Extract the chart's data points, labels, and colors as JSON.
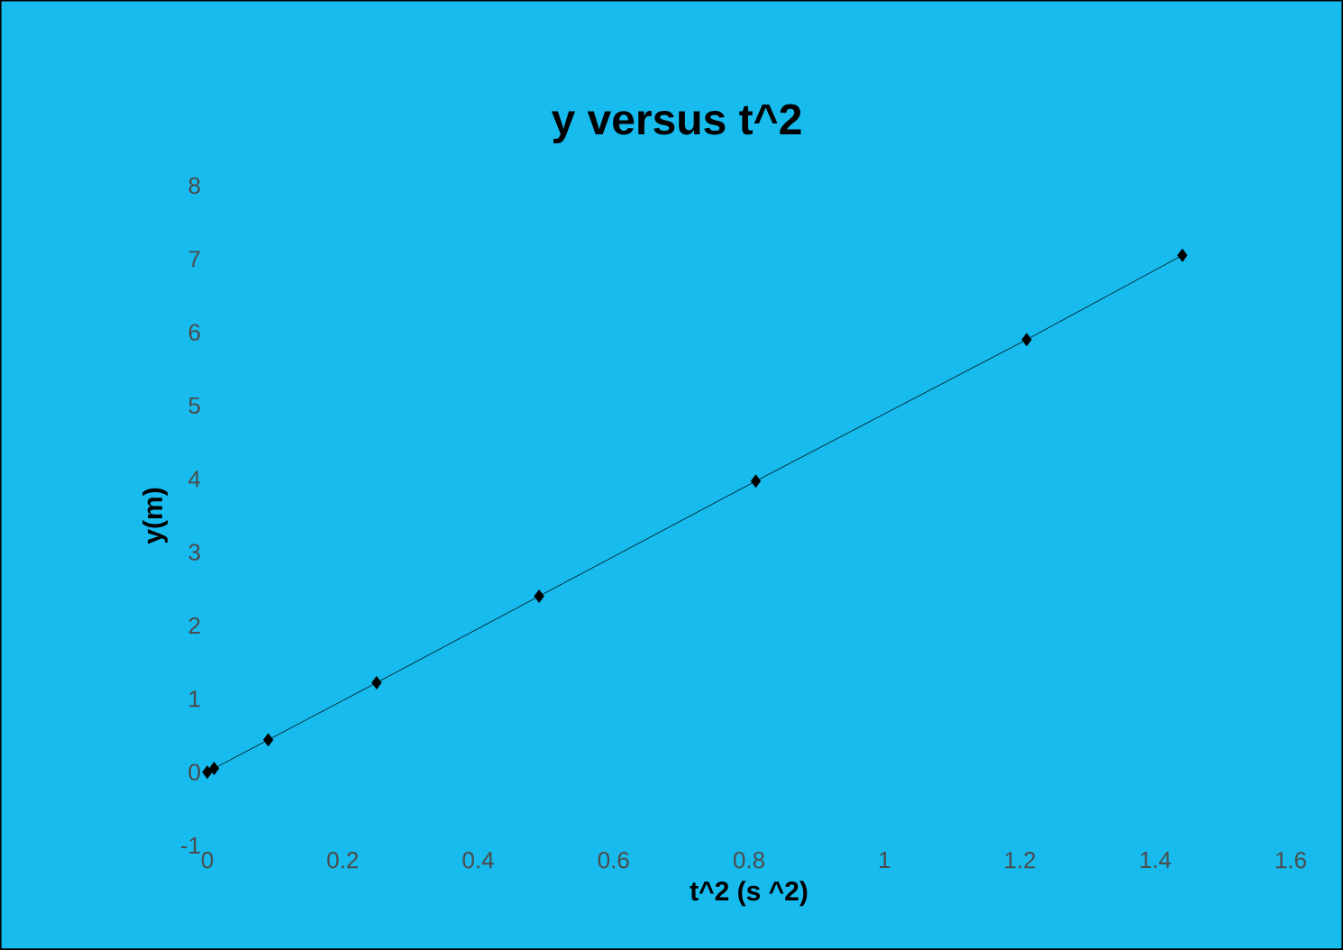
{
  "chart_data": {
    "type": "line",
    "title": "y versus t^2",
    "xlabel": "t^2 (s ^2)",
    "ylabel": "y(m)",
    "x": [
      0,
      0.01,
      0.09,
      0.25,
      0.49,
      0.81,
      1.21,
      1.44
    ],
    "series": [
      {
        "color": "#000000",
        "values": [
          0,
          0.05,
          0.44,
          1.22,
          2.4,
          3.97,
          5.9,
          7.05
        ]
      }
    ],
    "xlim": [
      0,
      1.6
    ],
    "ylim": [
      -1,
      8
    ],
    "xticks": [
      0,
      0.2,
      0.4,
      0.6,
      0.8,
      1,
      1.2,
      1.4,
      1.6
    ],
    "yticks": [
      -1,
      0,
      1,
      2,
      3,
      4,
      5,
      6,
      7,
      8
    ],
    "grid": false,
    "marker": "diamond",
    "line_style": "solid"
  }
}
